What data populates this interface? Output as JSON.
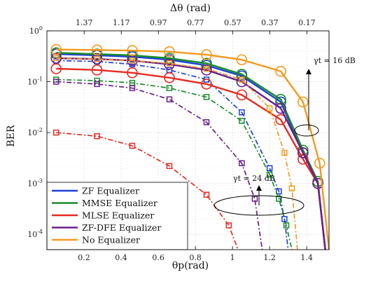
{
  "chart_data": {
    "type": "line",
    "xlabel": "θp(rad)",
    "x2label": "Δθ (rad)",
    "ylabel": "BER",
    "xlim": [
      0,
      1.52
    ],
    "ylim": [
      5e-05,
      1
    ],
    "yscale": "log",
    "grid": true,
    "legend_position": "bottom-left",
    "x_ticks": [
      "0.2",
      "0.4",
      "0.6",
      "0.8",
      "1",
      "1.2",
      "1.4"
    ],
    "x2_ticks": [
      "1.37",
      "1.17",
      "0.97",
      "0.77",
      "0.57",
      "0.37",
      "0.17"
    ],
    "y_ticks": [
      "10^-4",
      "10^-3",
      "10^-2",
      "10^-1",
      "10^0"
    ],
    "annotations": [
      {
        "label": "γt = 16 dB",
        "snr": "16 dB"
      },
      {
        "label": "γt = 24 dB",
        "snr": "24 dB"
      }
    ],
    "series": [
      {
        "name": "ZF Equalizer",
        "color": "#1f3fd6",
        "marker": "square",
        "style": "dashdot",
        "snr": "24 dB",
        "x": [
          0.05,
          0.27,
          0.46,
          0.66,
          0.86,
          1.05,
          1.2,
          1.25,
          1.28,
          1.3
        ],
        "y": [
          0.26,
          0.25,
          0.22,
          0.17,
          0.11,
          0.025,
          0.002,
          0.0007,
          0.0002,
          5e-05
        ]
      },
      {
        "name": "ZF Equalizer",
        "color": "#1f3fd6",
        "marker": "circle",
        "style": "solid",
        "snr": "16 dB",
        "x": [
          0.05,
          0.27,
          0.46,
          0.66,
          0.86,
          1.05,
          1.26,
          1.38,
          1.46,
          1.5
        ],
        "y": [
          0.35,
          0.33,
          0.31,
          0.27,
          0.21,
          0.13,
          0.04,
          0.004,
          0.001,
          5e-05
        ]
      },
      {
        "name": "MMSE Equalizer",
        "color": "#1a8c2a",
        "marker": "square",
        "style": "dashdot",
        "snr": "24 dB",
        "x": [
          0.05,
          0.27,
          0.46,
          0.66,
          0.86,
          1.05,
          1.2,
          1.25,
          1.29,
          1.32
        ],
        "y": [
          0.11,
          0.105,
          0.095,
          0.075,
          0.05,
          0.017,
          0.0015,
          0.0005,
          0.00015,
          5e-05
        ]
      },
      {
        "name": "MMSE Equalizer",
        "color": "#1a8c2a",
        "marker": "circle",
        "style": "solid",
        "snr": "16 dB",
        "x": [
          0.05,
          0.27,
          0.46,
          0.66,
          0.86,
          1.05,
          1.26,
          1.38,
          1.46,
          1.5
        ],
        "y": [
          0.37,
          0.35,
          0.33,
          0.29,
          0.23,
          0.14,
          0.045,
          0.0045,
          0.0011,
          5e-05
        ]
      },
      {
        "name": "MLSE Equalizer",
        "color": "#e52b23",
        "marker": "square",
        "style": "dashdot",
        "snr": "24 dB",
        "x": [
          0.05,
          0.27,
          0.46,
          0.66,
          0.86,
          0.98,
          1.03
        ],
        "y": [
          0.01,
          0.0085,
          0.0055,
          0.0022,
          0.0006,
          0.00015,
          5e-05
        ]
      },
      {
        "name": "MLSE Equalizer",
        "color": "#e52b23",
        "marker": "circle",
        "style": "solid",
        "snr": "16 dB",
        "x": [
          0.05,
          0.27,
          0.46,
          0.66,
          0.86,
          1.05,
          1.26,
          1.38,
          1.46,
          1.5
        ],
        "y": [
          0.18,
          0.17,
          0.15,
          0.12,
          0.09,
          0.055,
          0.018,
          0.003,
          0.001,
          5e-05
        ]
      },
      {
        "name": "ZF-DFE Equalizer",
        "color": "#6b1f8a",
        "marker": "square",
        "style": "dashdot",
        "snr": "24 dB",
        "x": [
          0.05,
          0.27,
          0.46,
          0.66,
          0.86,
          1.05,
          1.12,
          1.16
        ],
        "y": [
          0.1,
          0.09,
          0.075,
          0.045,
          0.016,
          0.0025,
          0.0005,
          5e-05
        ]
      },
      {
        "name": "ZF-DFE Equalizer",
        "color": "#6b1f8a",
        "marker": "circle",
        "style": "solid",
        "snr": "16 dB",
        "x": [
          0.05,
          0.27,
          0.46,
          0.66,
          0.86,
          1.05,
          1.26,
          1.38,
          1.46,
          1.5
        ],
        "y": [
          0.29,
          0.28,
          0.26,
          0.22,
          0.17,
          0.1,
          0.03,
          0.004,
          0.001,
          5e-05
        ]
      },
      {
        "name": "No Equalizer",
        "color": "#f39a1e",
        "marker": "square",
        "style": "dashdot",
        "snr": "24 dB",
        "x": [
          0.05,
          0.27,
          0.46,
          0.66,
          0.86,
          1.05,
          1.2,
          1.28,
          1.32,
          1.35
        ],
        "y": [
          0.29,
          0.28,
          0.26,
          0.23,
          0.18,
          0.11,
          0.03,
          0.004,
          0.0008,
          5e-05
        ]
      },
      {
        "name": "No Equalizer",
        "color": "#f39a1e",
        "marker": "circle",
        "style": "solid",
        "snr": "16 dB",
        "x": [
          0.05,
          0.27,
          0.46,
          0.66,
          0.86,
          1.05,
          1.26,
          1.38,
          1.47,
          1.52
        ],
        "y": [
          0.43,
          0.42,
          0.41,
          0.39,
          0.34,
          0.27,
          0.16,
          0.04,
          0.0025,
          5e-05
        ]
      }
    ],
    "legend": [
      "ZF Equalizer",
      "MMSE Equalizer",
      "MLSE Equalizer",
      "ZF-DFE Equalizer",
      "No Equalizer"
    ]
  }
}
